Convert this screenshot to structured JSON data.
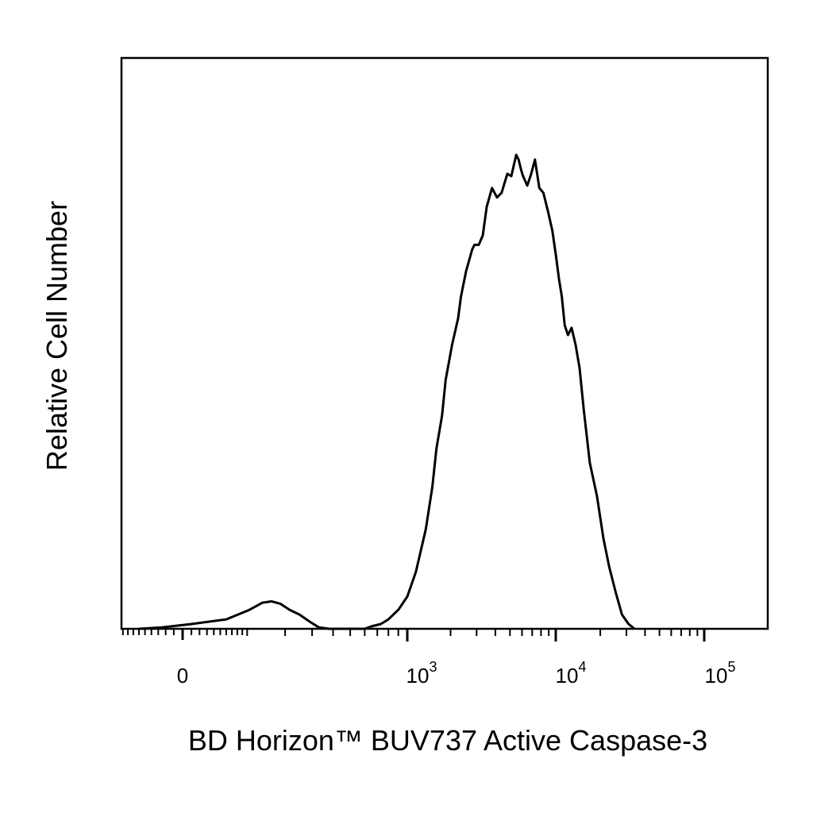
{
  "chart_data": {
    "type": "line",
    "subtype": "histogram",
    "xlabel": "BD Horizon™ BUV737 Active Caspase-3",
    "ylabel": "Relative Cell Number",
    "x_scale": "biexponential",
    "x_ticks": [
      {
        "value": 0,
        "label": "0"
      },
      {
        "value": 1000,
        "base": "10",
        "exp": "3"
      },
      {
        "value": 10000,
        "base": "10",
        "exp": "4"
      },
      {
        "value": 100000,
        "base": "10",
        "exp": "5"
      }
    ],
    "y_ticks": [],
    "grid": false,
    "legend": "none",
    "series": [
      {
        "color": "#000000",
        "points": [
          [
            -60,
            0.0
          ],
          [
            -25,
            0.003
          ],
          [
            10,
            0.01
          ],
          [
            60,
            0.02
          ],
          [
            105,
            0.04
          ],
          [
            135,
            0.055
          ],
          [
            160,
            0.058
          ],
          [
            185,
            0.053
          ],
          [
            215,
            0.04
          ],
          [
            250,
            0.03
          ],
          [
            290,
            0.015
          ],
          [
            330,
            0.003
          ],
          [
            380,
            0.0
          ],
          [
            600,
            0.0
          ],
          [
            650,
            0.005
          ],
          [
            730,
            0.01
          ],
          [
            800,
            0.02
          ],
          [
            900,
            0.04
          ],
          [
            1000,
            0.068
          ],
          [
            1150,
            0.12
          ],
          [
            1350,
            0.21
          ],
          [
            1500,
            0.3
          ],
          [
            1600,
            0.38
          ],
          [
            1750,
            0.45
          ],
          [
            1850,
            0.525
          ],
          [
            2050,
            0.6
          ],
          [
            2250,
            0.655
          ],
          [
            2350,
            0.7
          ],
          [
            2550,
            0.755
          ],
          [
            2800,
            0.8
          ],
          [
            2900,
            0.81
          ],
          [
            3100,
            0.81
          ],
          [
            3300,
            0.83
          ],
          [
            3500,
            0.89
          ],
          [
            3800,
            0.93
          ],
          [
            4100,
            0.91
          ],
          [
            4400,
            0.92
          ],
          [
            4800,
            0.96
          ],
          [
            5100,
            0.955
          ],
          [
            5500,
            1.0
          ],
          [
            5700,
            0.99
          ],
          [
            5900,
            0.97
          ],
          [
            6100,
            0.955
          ],
          [
            6500,
            0.935
          ],
          [
            6900,
            0.96
          ],
          [
            7300,
            0.99
          ],
          [
            7800,
            0.93
          ],
          [
            8300,
            0.92
          ],
          [
            8900,
            0.88
          ],
          [
            9500,
            0.84
          ],
          [
            10000,
            0.79
          ],
          [
            10500,
            0.74
          ],
          [
            11000,
            0.7
          ],
          [
            11500,
            0.64
          ],
          [
            12100,
            0.62
          ],
          [
            12800,
            0.635
          ],
          [
            13600,
            0.6
          ],
          [
            14500,
            0.55
          ],
          [
            15500,
            0.46
          ],
          [
            17000,
            0.35
          ],
          [
            19000,
            0.28
          ],
          [
            21000,
            0.19
          ],
          [
            23000,
            0.13
          ],
          [
            25500,
            0.075
          ],
          [
            28000,
            0.03
          ],
          [
            31000,
            0.01
          ],
          [
            34000,
            0.0
          ]
        ]
      }
    ]
  }
}
